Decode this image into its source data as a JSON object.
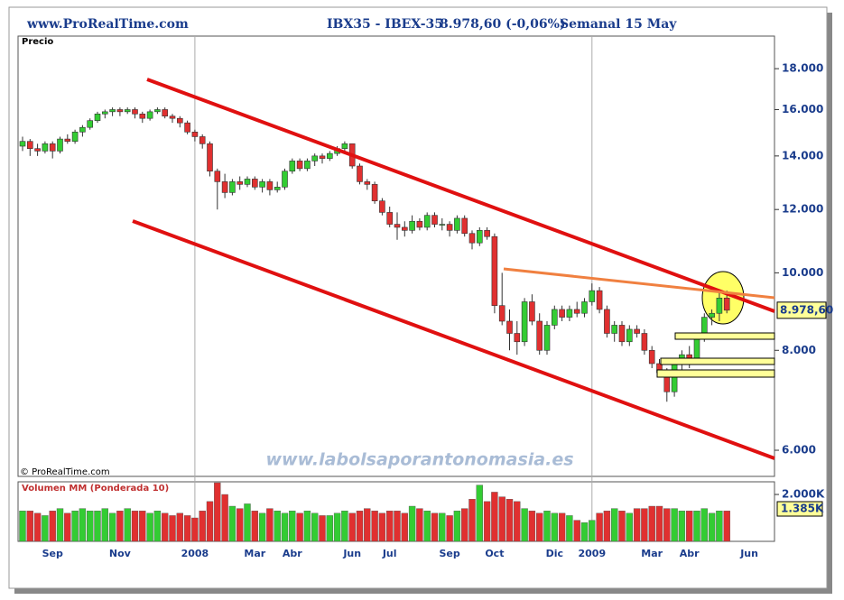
{
  "chart_data": {
    "type": "candlestick",
    "source": "www.ProRealTime.com",
    "title": "IBX35 - IBEX-35",
    "subtitle": "8.978,60 (-0,06%)",
    "period": "Semanal  15 May",
    "ylabel": "Precio",
    "copyright": "© ProRealTime.com",
    "watermark": "www.labolsaporantonomasia.es",
    "log_scale": true,
    "ylim": [
      5565,
      19770
    ],
    "yticks": [
      {
        "value": 6000,
        "label": "6.000"
      },
      {
        "value": 8000,
        "label": "8.000"
      },
      {
        "value": 10000,
        "label": "10.000"
      },
      {
        "value": 12000,
        "label": "12.000"
      },
      {
        "value": 14000,
        "label": "14.000"
      },
      {
        "value": 16000,
        "label": "16.000"
      },
      {
        "value": 18000,
        "label": "18.000"
      }
    ],
    "last_label": "8.978,60",
    "up_color": "#33cc33",
    "down_color": "#e03030",
    "categories": [
      null,
      null,
      null,
      null,
      "Sep",
      null,
      null,
      null,
      null,
      null,
      null,
      null,
      null,
      "Nov",
      null,
      null,
      null,
      null,
      null,
      null,
      null,
      null,
      null,
      "2008",
      null,
      null,
      null,
      null,
      null,
      null,
      null,
      "Mar",
      null,
      null,
      null,
      null,
      "Abr",
      null,
      null,
      null,
      null,
      null,
      null,
      null,
      "Jun",
      null,
      null,
      null,
      null,
      "Jul",
      null,
      null,
      null,
      null,
      null,
      null,
      null,
      "Sep",
      null,
      null,
      null,
      null,
      null,
      "Oct",
      null,
      null,
      null,
      null,
      null,
      null,
      null,
      "Dic",
      null,
      null,
      null,
      null,
      "2009",
      null,
      null,
      null,
      null,
      null,
      null,
      null,
      "Mar",
      null,
      null,
      null,
      null,
      "Abr",
      null,
      null,
      null,
      null,
      null,
      null,
      null,
      "Jun"
    ],
    "ohlc": [
      [
        14400,
        14800,
        14200,
        14600
      ],
      [
        14600,
        14700,
        14000,
        14300
      ],
      [
        14300,
        14500,
        14000,
        14200
      ],
      [
        14200,
        14600,
        14100,
        14500
      ],
      [
        14500,
        14600,
        13900,
        14200
      ],
      [
        14200,
        14800,
        14100,
        14700
      ],
      [
        14700,
        14900,
        14500,
        14600
      ],
      [
        14600,
        15100,
        14500,
        15000
      ],
      [
        15000,
        15300,
        14800,
        15200
      ],
      [
        15200,
        15600,
        15100,
        15500
      ],
      [
        15500,
        15900,
        15400,
        15800
      ],
      [
        15800,
        16000,
        15600,
        15900
      ],
      [
        15900,
        16100,
        15700,
        16000
      ],
      [
        16000,
        16100,
        15700,
        15900
      ],
      [
        15900,
        16100,
        15800,
        16000
      ],
      [
        16000,
        16100,
        15600,
        15800
      ],
      [
        15800,
        15900,
        15400,
        15600
      ],
      [
        15600,
        16000,
        15500,
        15900
      ],
      [
        15900,
        16100,
        15800,
        16000
      ],
      [
        16000,
        16100,
        15600,
        15700
      ],
      [
        15700,
        15800,
        15400,
        15600
      ],
      [
        15600,
        15700,
        15200,
        15400
      ],
      [
        15400,
        15500,
        14900,
        15000
      ],
      [
        15000,
        15100,
        14600,
        14800
      ],
      [
        14800,
        14900,
        14300,
        14500
      ],
      [
        14500,
        14600,
        13200,
        13400
      ],
      [
        13400,
        13500,
        12000,
        13000
      ],
      [
        13000,
        13300,
        12400,
        12600
      ],
      [
        12600,
        13100,
        12500,
        13000
      ],
      [
        13000,
        13200,
        12700,
        12900
      ],
      [
        12900,
        13200,
        12800,
        13100
      ],
      [
        13100,
        13200,
        12700,
        12800
      ],
      [
        12800,
        13100,
        12600,
        13000
      ],
      [
        13000,
        13100,
        12500,
        12700
      ],
      [
        12700,
        13000,
        12600,
        12800
      ],
      [
        12800,
        13500,
        12700,
        13400
      ],
      [
        13400,
        13900,
        13300,
        13800
      ],
      [
        13800,
        13900,
        13400,
        13500
      ],
      [
        13500,
        13900,
        13400,
        13800
      ],
      [
        13800,
        14100,
        13600,
        14000
      ],
      [
        14000,
        14100,
        13700,
        13900
      ],
      [
        13900,
        14200,
        13800,
        14100
      ],
      [
        14100,
        14400,
        14000,
        14300
      ],
      [
        14300,
        14600,
        14100,
        14500
      ],
      [
        14500,
        14500,
        13500,
        13600
      ],
      [
        13600,
        13700,
        12900,
        13000
      ],
      [
        13000,
        13100,
        12700,
        12900
      ],
      [
        12900,
        13000,
        12200,
        12300
      ],
      [
        12300,
        12400,
        11800,
        11900
      ],
      [
        11900,
        12100,
        11400,
        11500
      ],
      [
        11500,
        11900,
        11000,
        11400
      ],
      [
        11400,
        11600,
        11100,
        11300
      ],
      [
        11300,
        11800,
        11200,
        11600
      ],
      [
        11600,
        11700,
        11300,
        11400
      ],
      [
        11400,
        11900,
        11300,
        11800
      ],
      [
        11800,
        11900,
        11400,
        11500
      ],
      [
        11500,
        11700,
        11300,
        11500
      ],
      [
        11500,
        11600,
        11100,
        11300
      ],
      [
        11300,
        11800,
        11200,
        11700
      ],
      [
        11700,
        11800,
        11100,
        11200
      ],
      [
        11200,
        11300,
        10700,
        10900
      ],
      [
        10900,
        11400,
        10800,
        11300
      ],
      [
        11300,
        11400,
        11000,
        11100
      ],
      [
        11100,
        11200,
        8900,
        9100
      ],
      [
        9100,
        10000,
        8600,
        8700
      ],
      [
        8700,
        9000,
        8000,
        8400
      ],
      [
        8400,
        8700,
        7900,
        8200
      ],
      [
        8200,
        9300,
        8100,
        9200
      ],
      [
        9200,
        9400,
        8600,
        8700
      ],
      [
        8700,
        8900,
        7900,
        8000
      ],
      [
        8000,
        8700,
        7900,
        8600
      ],
      [
        8600,
        9100,
        8500,
        9000
      ],
      [
        9000,
        9100,
        8700,
        8800
      ],
      [
        8800,
        9100,
        8700,
        9000
      ],
      [
        9000,
        9200,
        8800,
        8900
      ],
      [
        8900,
        9300,
        8800,
        9200
      ],
      [
        9200,
        9700,
        9100,
        9500
      ],
      [
        9500,
        9600,
        8900,
        9000
      ],
      [
        9000,
        9100,
        8300,
        8400
      ],
      [
        8400,
        8700,
        8200,
        8600
      ],
      [
        8600,
        8700,
        8100,
        8200
      ],
      [
        8200,
        8600,
        8100,
        8500
      ],
      [
        8500,
        8600,
        8300,
        8400
      ],
      [
        8400,
        8500,
        7900,
        8000
      ],
      [
        8000,
        8100,
        7600,
        7700
      ],
      [
        7700,
        7800,
        7400,
        7500
      ],
      [
        7500,
        7600,
        6900,
        7100
      ],
      [
        7100,
        7800,
        7000,
        7700
      ],
      [
        7700,
        8000,
        7500,
        7900
      ],
      [
        7900,
        8100,
        7600,
        7800
      ],
      [
        7800,
        8400,
        7700,
        8300
      ],
      [
        8300,
        8900,
        8200,
        8800
      ],
      [
        8800,
        9000,
        8600,
        8900
      ],
      [
        8900,
        9500,
        8700,
        9300
      ],
      [
        9300,
        9500,
        8900,
        8978.6
      ],
      null,
      null,
      null
    ],
    "volume": {
      "title": "Volumen MM (Ponderada 10)",
      "ylim": [
        0,
        2540
      ],
      "yticks": [
        {
          "value": 2000,
          "label": "2.000K"
        }
      ],
      "mm": {
        "value": 1385,
        "label": "1.385K"
      },
      "values": [
        1300,
        1300,
        1200,
        1100,
        1300,
        1400,
        1200,
        1300,
        1400,
        1300,
        1300,
        1400,
        1200,
        1300,
        1400,
        1300,
        1300,
        1200,
        1300,
        1200,
        1100,
        1200,
        1100,
        1000,
        1300,
        1700,
        2500,
        2000,
        1500,
        1400,
        1600,
        1300,
        1200,
        1400,
        1300,
        1200,
        1300,
        1200,
        1300,
        1200,
        1100,
        1100,
        1200,
        1300,
        1200,
        1300,
        1400,
        1300,
        1200,
        1300,
        1300,
        1200,
        1500,
        1400,
        1300,
        1200,
        1200,
        1100,
        1300,
        1400,
        1800,
        2400,
        1700,
        2100,
        1900,
        1800,
        1700,
        1400,
        1300,
        1200,
        1300,
        1200,
        1200,
        1100,
        900,
        800,
        900,
        1200,
        1300,
        1400,
        1300,
        1200,
        1400,
        1400,
        1500,
        1500,
        1400,
        1400,
        1300,
        1300,
        1300,
        1400,
        1200,
        1300,
        1300,
        null,
        null,
        null
      ]
    }
  }
}
